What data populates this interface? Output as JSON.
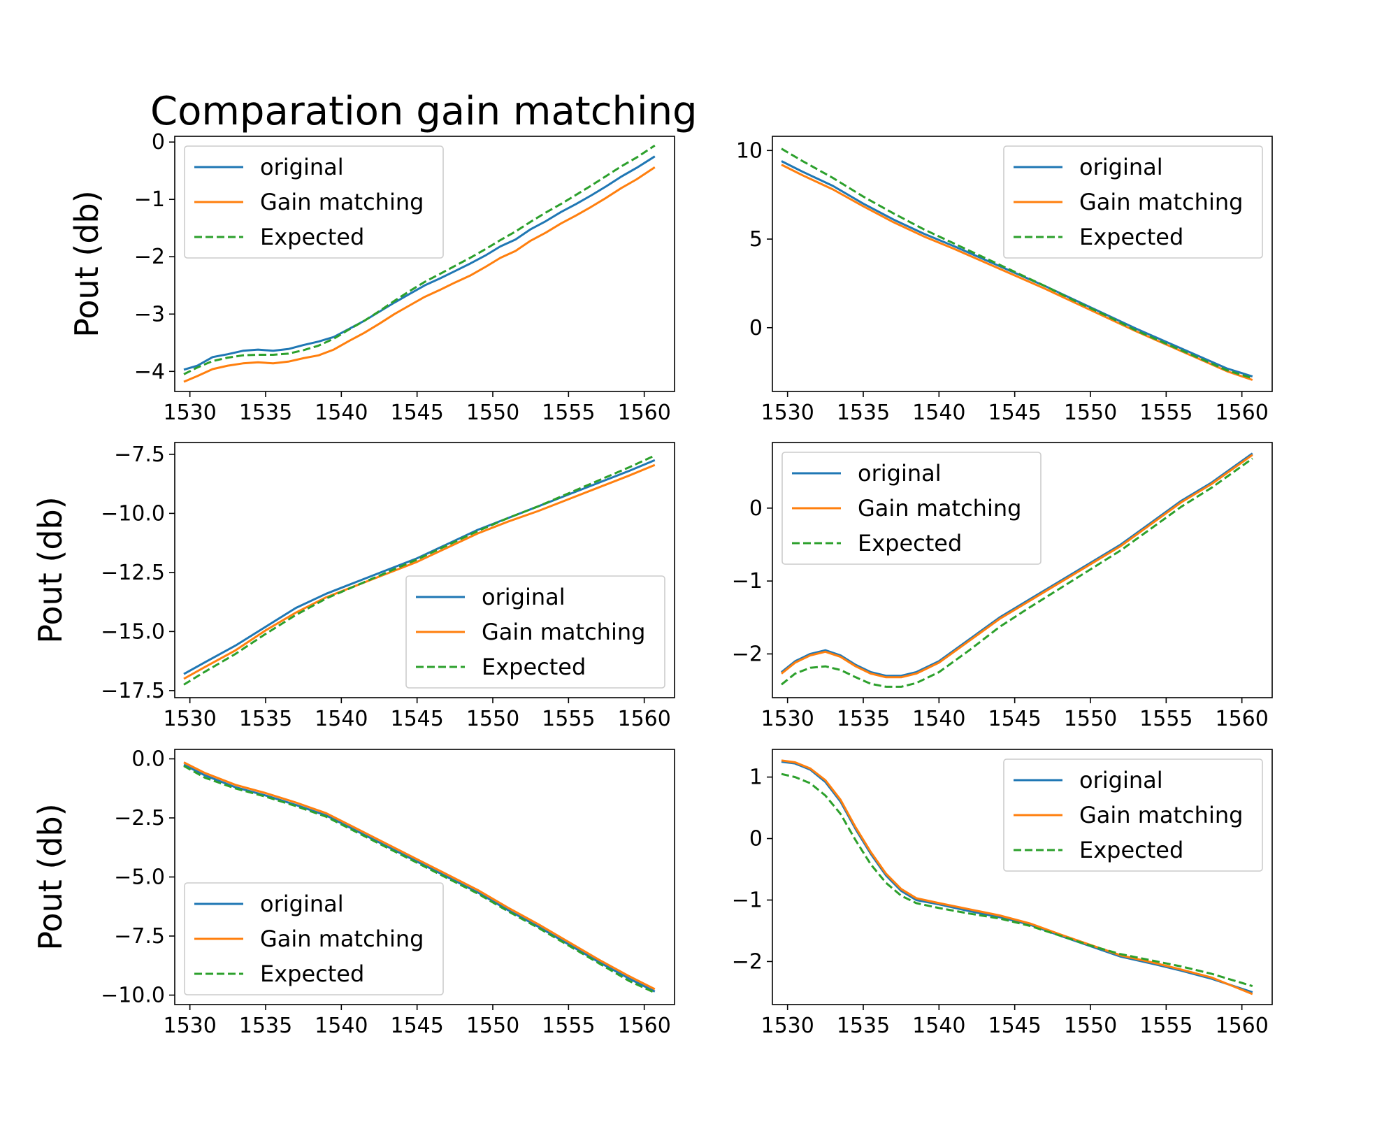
{
  "figure": {
    "title": "Comparation gain matching"
  },
  "colors": {
    "original": "#1f77b4",
    "gain_matching": "#ff7f0e",
    "expected": "#2ca02c"
  },
  "chart_data": [
    {
      "type": "line",
      "panel": "row1-left",
      "ylabel": "Pout (db)",
      "xlim": [
        1529,
        1562
      ],
      "ylim": [
        -4.35,
        0.1
      ],
      "xticks": [
        1530,
        1535,
        1540,
        1545,
        1550,
        1555,
        1560
      ],
      "yticks": [
        -4,
        -3,
        -2,
        -1,
        0
      ],
      "ytick_labels": [
        "−4",
        "−3",
        "−2",
        "−1",
        "0"
      ],
      "legend_loc": "upper-left",
      "x": [
        1529.6,
        1530.5,
        1531.5,
        1532.5,
        1533.5,
        1534.5,
        1535.5,
        1536.5,
        1537.5,
        1538.5,
        1539.5,
        1540.5,
        1541.5,
        1542.5,
        1543.5,
        1544.5,
        1545.5,
        1546.5,
        1547.5,
        1548.5,
        1549.5,
        1550.5,
        1551.5,
        1552.5,
        1553.5,
        1554.5,
        1555.5,
        1556.5,
        1557.5,
        1558.5,
        1559.5,
        1560.7
      ],
      "series": [
        {
          "name": "original",
          "style": "solid",
          "values": [
            -3.97,
            -3.9,
            -3.75,
            -3.7,
            -3.64,
            -3.62,
            -3.64,
            -3.61,
            -3.54,
            -3.48,
            -3.4,
            -3.26,
            -3.12,
            -2.96,
            -2.8,
            -2.65,
            -2.5,
            -2.38,
            -2.25,
            -2.12,
            -1.98,
            -1.82,
            -1.7,
            -1.52,
            -1.38,
            -1.22,
            -1.08,
            -0.93,
            -0.77,
            -0.6,
            -0.45,
            -0.25
          ]
        },
        {
          "name": "Gain matching",
          "style": "solid",
          "values": [
            -4.18,
            -4.08,
            -3.96,
            -3.9,
            -3.86,
            -3.84,
            -3.86,
            -3.83,
            -3.77,
            -3.72,
            -3.62,
            -3.47,
            -3.33,
            -3.17,
            -3.0,
            -2.85,
            -2.7,
            -2.58,
            -2.45,
            -2.33,
            -2.18,
            -2.02,
            -1.9,
            -1.72,
            -1.58,
            -1.42,
            -1.28,
            -1.13,
            -0.97,
            -0.8,
            -0.65,
            -0.44
          ]
        },
        {
          "name": "Expected",
          "style": "dashed",
          "values": [
            -4.05,
            -3.93,
            -3.82,
            -3.76,
            -3.72,
            -3.71,
            -3.71,
            -3.69,
            -3.63,
            -3.55,
            -3.43,
            -3.27,
            -3.12,
            -2.95,
            -2.77,
            -2.6,
            -2.44,
            -2.3,
            -2.16,
            -2.02,
            -1.87,
            -1.71,
            -1.56,
            -1.39,
            -1.23,
            -1.08,
            -0.92,
            -0.76,
            -0.59,
            -0.42,
            -0.27,
            -0.06
          ]
        }
      ]
    },
    {
      "type": "line",
      "panel": "row1-right",
      "ylabel": "",
      "xlim": [
        1529,
        1562
      ],
      "ylim": [
        -3.6,
        10.8
      ],
      "xticks": [
        1530,
        1535,
        1540,
        1545,
        1550,
        1555,
        1560
      ],
      "yticks": [
        0,
        5,
        10
      ],
      "ytick_labels": [
        "0",
        "5",
        "10"
      ],
      "legend_loc": "upper-right",
      "x": [
        1529.6,
        1531,
        1533,
        1535,
        1537,
        1539,
        1541,
        1543,
        1545,
        1547,
        1549,
        1551,
        1553,
        1555,
        1557,
        1559,
        1560.7
      ],
      "series": [
        {
          "name": "original",
          "style": "solid",
          "values": [
            9.4,
            8.8,
            8.0,
            7.0,
            6.1,
            5.3,
            4.6,
            3.85,
            3.1,
            2.35,
            1.55,
            0.75,
            -0.05,
            -0.8,
            -1.55,
            -2.3,
            -2.75
          ]
        },
        {
          "name": "Gain matching",
          "style": "solid",
          "values": [
            9.2,
            8.6,
            7.8,
            6.85,
            5.95,
            5.15,
            4.45,
            3.7,
            2.95,
            2.2,
            1.4,
            0.6,
            -0.2,
            -0.95,
            -1.7,
            -2.45,
            -2.95
          ]
        },
        {
          "name": "Expected",
          "style": "dashed",
          "values": [
            10.1,
            9.4,
            8.45,
            7.4,
            6.45,
            5.55,
            4.75,
            3.95,
            3.15,
            2.35,
            1.5,
            0.7,
            -0.15,
            -0.9,
            -1.65,
            -2.4,
            -2.85
          ]
        }
      ]
    },
    {
      "type": "line",
      "panel": "row2-left",
      "ylabel": "Pout (db)",
      "xlim": [
        1529,
        1562
      ],
      "ylim": [
        -17.8,
        -7.0
      ],
      "xticks": [
        1530,
        1535,
        1540,
        1545,
        1550,
        1555,
        1560
      ],
      "yticks": [
        -17.5,
        -15.0,
        -12.5,
        -10.0,
        -7.5
      ],
      "ytick_labels": [
        "−17.5",
        "−15.0",
        "−12.5",
        "−10.0",
        "−7.5"
      ],
      "legend_loc": "lower-right",
      "x": [
        1529.6,
        1531,
        1533,
        1535,
        1537,
        1539,
        1541,
        1543,
        1545,
        1547,
        1549,
        1551,
        1553,
        1555,
        1557,
        1559,
        1560.7
      ],
      "series": [
        {
          "name": "original",
          "style": "solid",
          "values": [
            -16.8,
            -16.3,
            -15.6,
            -14.8,
            -14.0,
            -13.4,
            -12.9,
            -12.4,
            -11.9,
            -11.3,
            -10.7,
            -10.2,
            -9.7,
            -9.2,
            -8.7,
            -8.2,
            -7.75
          ]
        },
        {
          "name": "Gain matching",
          "style": "solid",
          "values": [
            -17.0,
            -16.5,
            -15.8,
            -14.95,
            -14.2,
            -13.55,
            -13.05,
            -12.55,
            -12.05,
            -11.45,
            -10.85,
            -10.35,
            -9.9,
            -9.4,
            -8.9,
            -8.4,
            -7.95
          ]
        },
        {
          "name": "Expected",
          "style": "dashed",
          "values": [
            -17.25,
            -16.7,
            -15.95,
            -15.1,
            -14.3,
            -13.6,
            -13.05,
            -12.5,
            -11.95,
            -11.35,
            -10.75,
            -10.2,
            -9.7,
            -9.15,
            -8.6,
            -8.05,
            -7.55
          ]
        }
      ]
    },
    {
      "type": "line",
      "panel": "row2-right",
      "ylabel": "",
      "xlim": [
        1529,
        1562
      ],
      "ylim": [
        -2.6,
        0.9
      ],
      "xticks": [
        1530,
        1535,
        1540,
        1545,
        1550,
        1555,
        1560
      ],
      "yticks": [
        -2,
        -1,
        0
      ],
      "ytick_labels": [
        "−2",
        "−1",
        "0"
      ],
      "legend_loc": "upper-left",
      "x": [
        1529.6,
        1530.5,
        1531.5,
        1532.5,
        1533.5,
        1534.5,
        1535.5,
        1536.5,
        1537.5,
        1538.5,
        1540,
        1542,
        1544,
        1546,
        1548,
        1550,
        1552,
        1554,
        1556,
        1558,
        1560.7
      ],
      "series": [
        {
          "name": "original",
          "style": "solid",
          "values": [
            -2.25,
            -2.1,
            -2.0,
            -1.95,
            -2.02,
            -2.15,
            -2.25,
            -2.3,
            -2.3,
            -2.25,
            -2.1,
            -1.8,
            -1.5,
            -1.25,
            -1.0,
            -0.75,
            -0.5,
            -0.2,
            0.1,
            0.35,
            0.75
          ]
        },
        {
          "name": "Gain matching",
          "style": "solid",
          "values": [
            -2.27,
            -2.12,
            -2.02,
            -1.97,
            -2.04,
            -2.17,
            -2.27,
            -2.32,
            -2.32,
            -2.27,
            -2.12,
            -1.82,
            -1.52,
            -1.27,
            -1.02,
            -0.77,
            -0.52,
            -0.22,
            0.08,
            0.33,
            0.73
          ]
        },
        {
          "name": "Expected",
          "style": "dashed",
          "values": [
            -2.42,
            -2.27,
            -2.19,
            -2.17,
            -2.22,
            -2.32,
            -2.41,
            -2.45,
            -2.45,
            -2.4,
            -2.25,
            -1.95,
            -1.63,
            -1.36,
            -1.1,
            -0.84,
            -0.58,
            -0.28,
            0.02,
            0.28,
            0.68
          ]
        }
      ]
    },
    {
      "type": "line",
      "panel": "row3-left",
      "ylabel": "Pout (db)",
      "xlim": [
        1529,
        1562
      ],
      "ylim": [
        -10.4,
        0.4
      ],
      "xticks": [
        1530,
        1535,
        1540,
        1545,
        1550,
        1555,
        1560
      ],
      "yticks": [
        -10.0,
        -7.5,
        -5.0,
        -2.5,
        0.0
      ],
      "ytick_labels": [
        "−10.0",
        "−7.5",
        "−5.0",
        "−2.5",
        "0.0"
      ],
      "legend_loc": "lower-left",
      "x": [
        1529.6,
        1531,
        1533,
        1535,
        1537,
        1539,
        1541,
        1543,
        1545,
        1547,
        1549,
        1551,
        1553,
        1555,
        1557,
        1559,
        1560.7
      ],
      "series": [
        {
          "name": "original",
          "style": "solid",
          "values": [
            -0.25,
            -0.7,
            -1.2,
            -1.55,
            -1.95,
            -2.4,
            -3.05,
            -3.7,
            -4.35,
            -5.0,
            -5.65,
            -6.4,
            -7.1,
            -7.85,
            -8.6,
            -9.3,
            -9.85
          ]
        },
        {
          "name": "Gain matching",
          "style": "solid",
          "values": [
            -0.15,
            -0.6,
            -1.1,
            -1.45,
            -1.85,
            -2.3,
            -2.95,
            -3.6,
            -4.25,
            -4.9,
            -5.55,
            -6.3,
            -7.0,
            -7.75,
            -8.5,
            -9.2,
            -9.75
          ]
        },
        {
          "name": "Expected",
          "style": "dashed",
          "values": [
            -0.3,
            -0.8,
            -1.25,
            -1.6,
            -2.0,
            -2.45,
            -3.1,
            -3.75,
            -4.4,
            -5.05,
            -5.7,
            -6.45,
            -7.15,
            -7.9,
            -8.65,
            -9.4,
            -9.9
          ]
        }
      ]
    },
    {
      "type": "line",
      "panel": "row3-right",
      "ylabel": "",
      "xlim": [
        1529,
        1562
      ],
      "ylim": [
        -2.7,
        1.45
      ],
      "xticks": [
        1530,
        1535,
        1540,
        1545,
        1550,
        1555,
        1560
      ],
      "yticks": [
        -2,
        -1,
        0,
        1
      ],
      "ytick_labels": [
        "−2",
        "−1",
        "0",
        "1"
      ],
      "legend_loc": "upper-right",
      "x": [
        1529.6,
        1530.5,
        1531.5,
        1532.5,
        1533.5,
        1534.5,
        1535.5,
        1536.5,
        1537.5,
        1538.5,
        1540,
        1542,
        1544,
        1546,
        1548,
        1550,
        1552,
        1554,
        1556,
        1558,
        1560.7
      ],
      "series": [
        {
          "name": "original",
          "style": "solid",
          "values": [
            1.25,
            1.22,
            1.12,
            0.92,
            0.6,
            0.15,
            -0.25,
            -0.6,
            -0.85,
            -1.0,
            -1.07,
            -1.18,
            -1.28,
            -1.4,
            -1.58,
            -1.75,
            -1.92,
            -2.03,
            -2.15,
            -2.28,
            -2.5
          ]
        },
        {
          "name": "Gain matching",
          "style": "solid",
          "values": [
            1.27,
            1.24,
            1.14,
            0.95,
            0.63,
            0.18,
            -0.22,
            -0.57,
            -0.82,
            -0.97,
            -1.05,
            -1.15,
            -1.25,
            -1.38,
            -1.56,
            -1.73,
            -1.9,
            -2.01,
            -2.13,
            -2.26,
            -2.53
          ]
        },
        {
          "name": "Expected",
          "style": "dashed",
          "values": [
            1.05,
            1.0,
            0.9,
            0.7,
            0.4,
            -0.03,
            -0.42,
            -0.72,
            -0.93,
            -1.05,
            -1.13,
            -1.22,
            -1.3,
            -1.42,
            -1.58,
            -1.74,
            -1.88,
            -1.98,
            -2.08,
            -2.2,
            -2.4
          ]
        }
      ]
    }
  ]
}
